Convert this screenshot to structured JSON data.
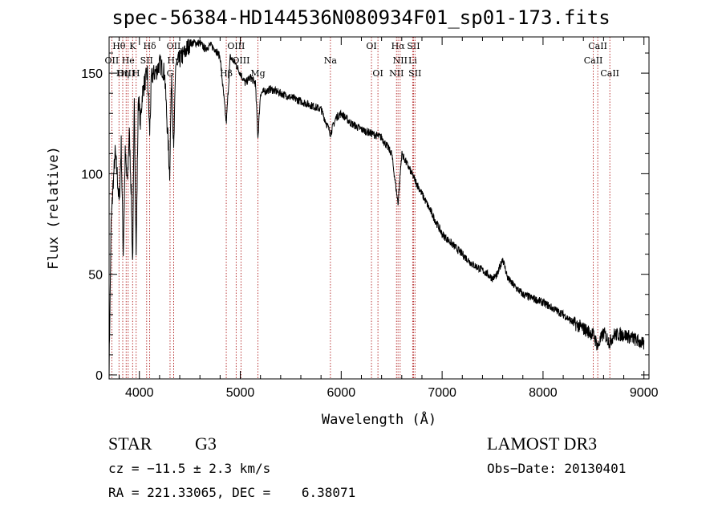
{
  "chart_data": {
    "type": "line",
    "title": "spec-56384-HD144536N080934F01_sp01-173.fits",
    "xlabel": "Wavelength (Å)",
    "ylabel": "Flux (relative)",
    "xlim": [
      3700,
      9050
    ],
    "ylim": [
      -2,
      168
    ],
    "xticks": [
      4000,
      5000,
      6000,
      7000,
      8000,
      9000
    ],
    "yticks": [
      0,
      50,
      100,
      150
    ],
    "series": [
      {
        "name": "flux",
        "x": [
          3700,
          3720,
          3740,
          3760,
          3780,
          3800,
          3820,
          3840,
          3860,
          3880,
          3900,
          3920,
          3933,
          3950,
          3968,
          3990,
          4010,
          4030,
          4050,
          4080,
          4102,
          4120,
          4150,
          4180,
          4200,
          4250,
          4300,
          4320,
          4340,
          4360,
          4380,
          4400,
          4450,
          4500,
          4550,
          4600,
          4650,
          4700,
          4750,
          4800,
          4861,
          4900,
          4950,
          5000,
          5050,
          5100,
          5150,
          5175,
          5200,
          5300,
          5400,
          5500,
          5600,
          5700,
          5800,
          5893,
          5950,
          6000,
          6100,
          6200,
          6300,
          6400,
          6500,
          6563,
          6600,
          6700,
          6800,
          6900,
          7000,
          7100,
          7200,
          7300,
          7400,
          7500,
          7550,
          7600,
          7650,
          7700,
          7800,
          7900,
          8000,
          8100,
          8200,
          8300,
          8400,
          8500,
          8542,
          8600,
          8662,
          8700,
          8800,
          8900,
          9000
        ],
        "values": [
          2,
          75,
          95,
          110,
          100,
          85,
          115,
          60,
          110,
          95,
          120,
          90,
          55,
          135,
          60,
          140,
          125,
          140,
          145,
          150,
          120,
          148,
          150,
          152,
          155,
          150,
          100,
          150,
          110,
          155,
          155,
          157,
          160,
          165,
          165,
          165,
          162,
          164,
          162,
          158,
          125,
          158,
          155,
          150,
          145,
          148,
          145,
          118,
          140,
          142,
          140,
          138,
          136,
          134,
          132,
          120,
          128,
          130,
          125,
          122,
          120,
          118,
          110,
          85,
          110,
          100,
          90,
          80,
          70,
          65,
          60,
          55,
          52,
          48,
          50,
          58,
          48,
          45,
          40,
          38,
          36,
          33,
          30,
          26,
          23,
          20,
          14,
          21,
          16,
          20,
          20,
          18,
          15
        ]
      }
    ],
    "lines": [
      {
        "label": "Hθ",
        "x": 3798,
        "row": 0
      },
      {
        "label": "K",
        "x": 3933,
        "row": 0
      },
      {
        "label": "Hδ",
        "x": 4102,
        "row": 0
      },
      {
        "label": "OII",
        "x": 4340,
        "row": 0
      },
      {
        "label": "OIII",
        "x": 4959,
        "row": 0
      },
      {
        "label": "OI",
        "x": 6300,
        "row": 0
      },
      {
        "label": "Hα",
        "x": 6563,
        "row": 0
      },
      {
        "label": "SII",
        "x": 6717,
        "row": 0
      },
      {
        "label": "CaII",
        "x": 8542,
        "row": 0
      },
      {
        "label": "OII",
        "x": 3727,
        "row": 1
      },
      {
        "label": "He",
        "x": 3889,
        "row": 1
      },
      {
        "label": "SII",
        "x": 4072,
        "row": 1
      },
      {
        "label": "Hγ",
        "x": 4340,
        "row": 1
      },
      {
        "label": "OIII",
        "x": 5007,
        "row": 1
      },
      {
        "label": "Na",
        "x": 5893,
        "row": 1
      },
      {
        "label": "NII",
        "x": 6584,
        "row": 1
      },
      {
        "label": "Li",
        "x": 6708,
        "row": 1
      },
      {
        "label": "CaII",
        "x": 8498,
        "row": 1
      },
      {
        "label": "OIII",
        "x": 3869,
        "row": 2
      },
      {
        "label": "Hη",
        "x": 3835,
        "row": 2
      },
      {
        "label": "H",
        "x": 3968,
        "row": 2
      },
      {
        "label": "G",
        "x": 4304,
        "row": 2
      },
      {
        "label": "Hβ",
        "x": 4861,
        "row": 2
      },
      {
        "label": "Mg",
        "x": 5175,
        "row": 2
      },
      {
        "label": "OI",
        "x": 6364,
        "row": 2
      },
      {
        "label": "NII",
        "x": 6548,
        "row": 2
      },
      {
        "label": "SII",
        "x": 6731,
        "row": 2
      },
      {
        "label": "CaII",
        "x": 8662,
        "row": 2
      }
    ]
  },
  "info": {
    "object_class": "STAR",
    "subclass": "G3",
    "survey": "LAMOST DR3",
    "redshift": "cz = −11.5 ± 2.3 km/s",
    "obs_date": "Obs−Date: 20130401",
    "coords": "RA = 221.33065, DEC =    6.38071"
  },
  "colors": {
    "line": "#000000",
    "marker": "#b22222"
  }
}
